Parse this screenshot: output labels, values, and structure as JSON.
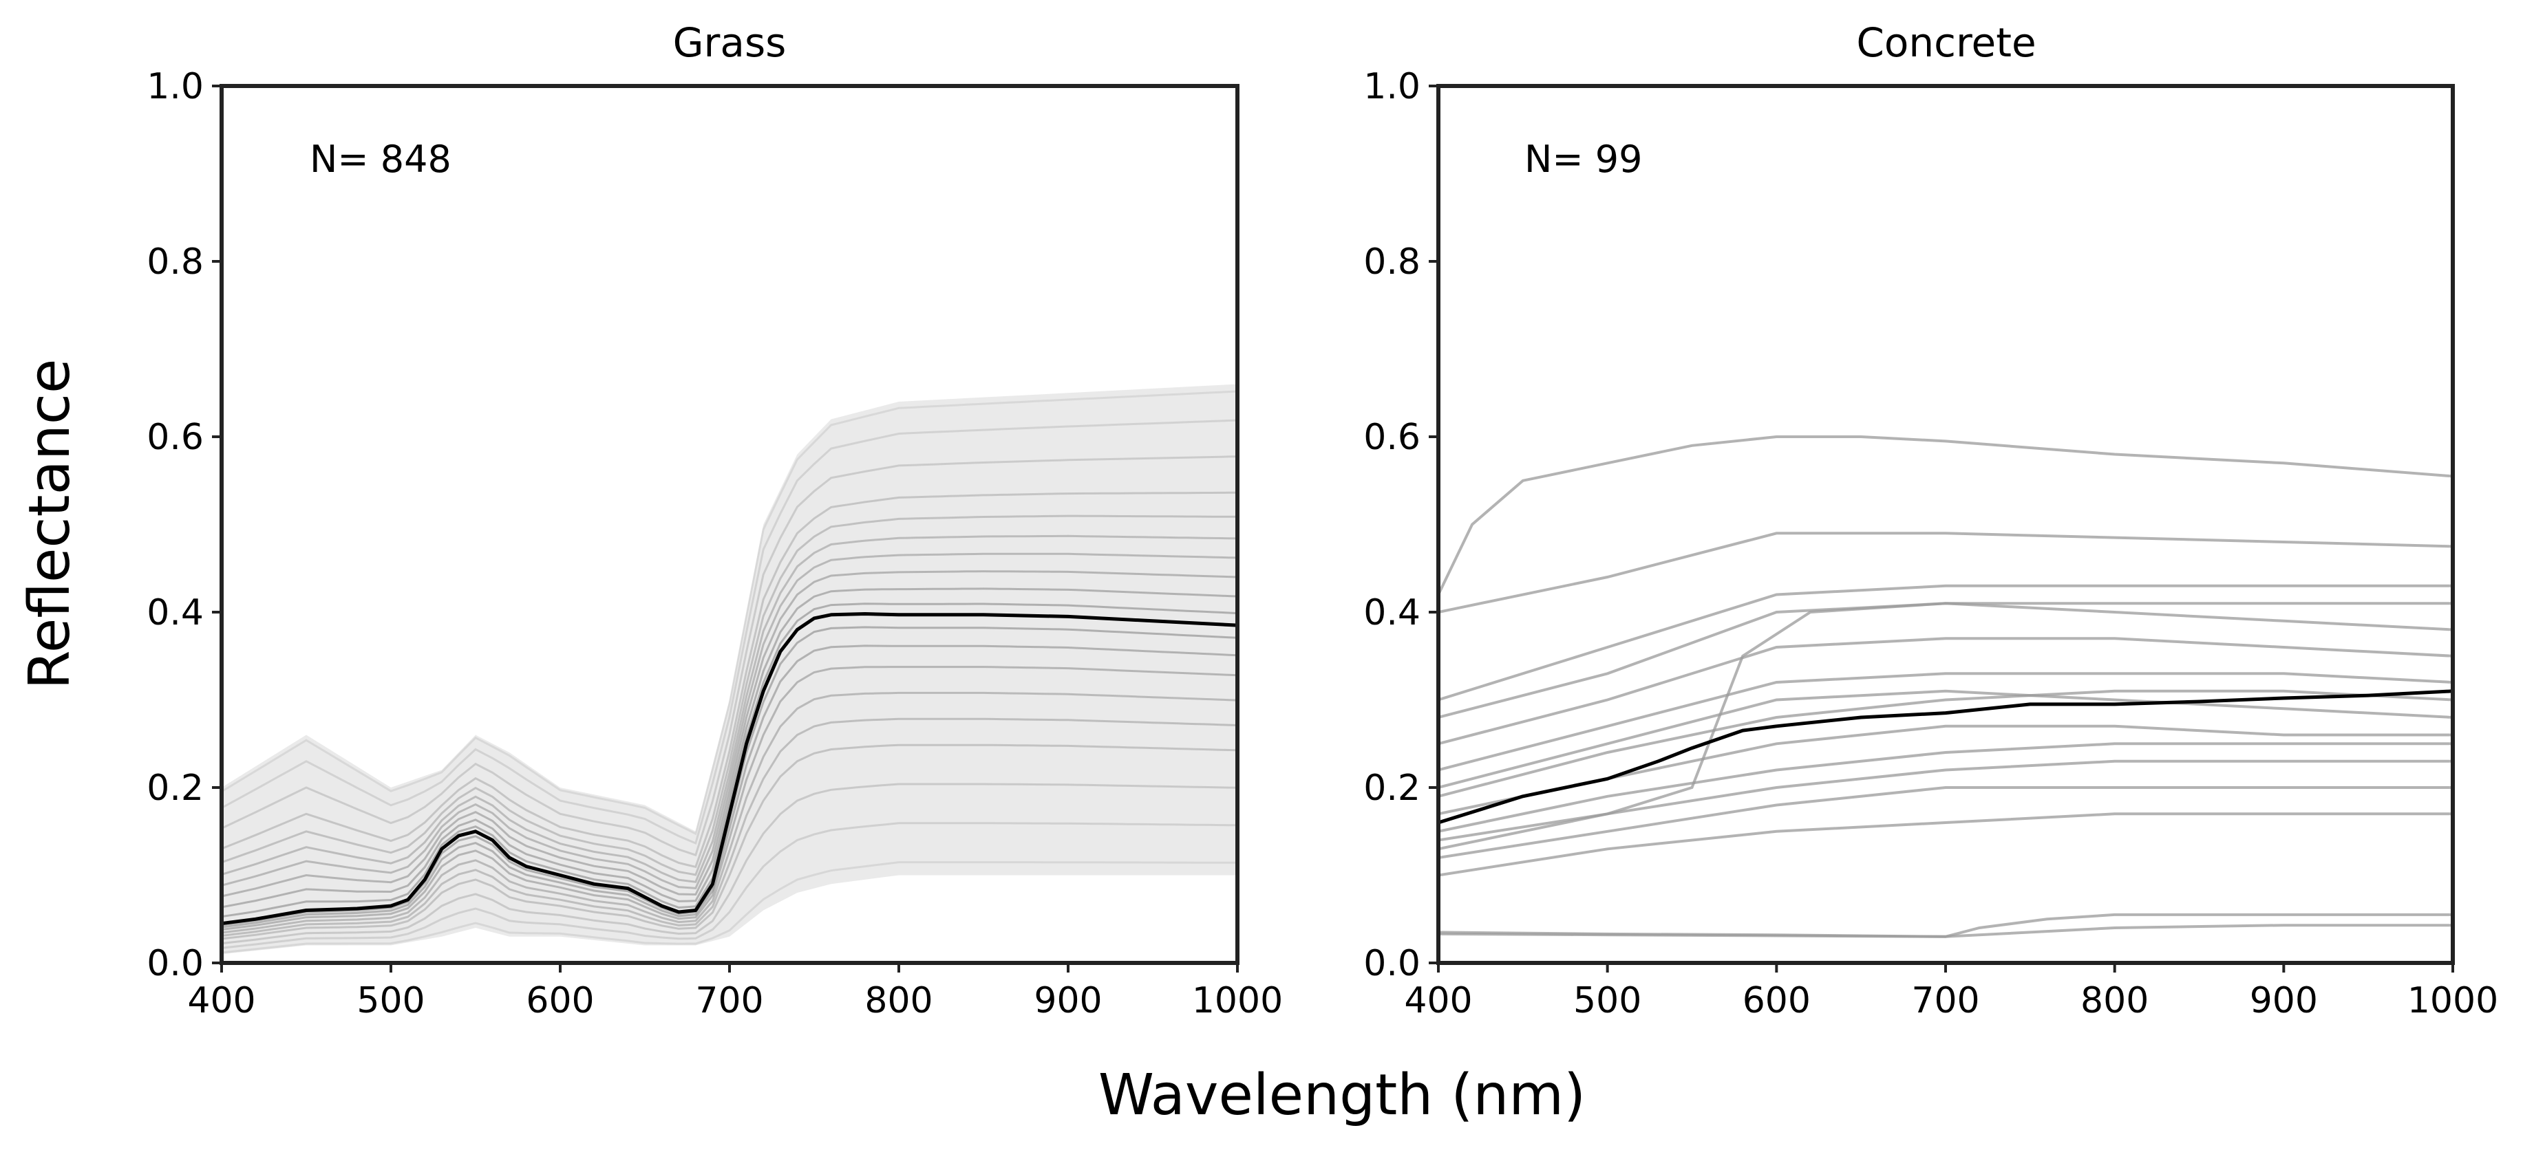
{
  "figure": {
    "xlabel": "Wavelength (nm)",
    "ylabel": "Reflectance"
  },
  "chart_data": [
    {
      "type": "line",
      "title": "Grass",
      "annotation": "N= 848",
      "n_spectra": 848,
      "xlabel": "Wavelength (nm)",
      "ylabel": "Reflectance",
      "xlim": [
        400,
        1000
      ],
      "ylim": [
        0.0,
        1.0
      ],
      "xticks": [
        "400",
        "500",
        "600",
        "700",
        "800",
        "900",
        "1000"
      ],
      "yticks": [
        "0.0",
        "0.2",
        "0.4",
        "0.6",
        "0.8",
        "1.0"
      ],
      "mean_series": {
        "name": "mean",
        "x": [
          400,
          420,
          450,
          480,
          500,
          510,
          520,
          530,
          540,
          550,
          560,
          570,
          580,
          600,
          620,
          640,
          660,
          670,
          680,
          690,
          700,
          710,
          720,
          730,
          740,
          750,
          760,
          780,
          800,
          850,
          900,
          950,
          1000
        ],
        "y": [
          0.045,
          0.05,
          0.06,
          0.062,
          0.065,
          0.072,
          0.095,
          0.13,
          0.145,
          0.15,
          0.14,
          0.12,
          0.11,
          0.1,
          0.09,
          0.085,
          0.065,
          0.058,
          0.06,
          0.09,
          0.17,
          0.25,
          0.31,
          0.355,
          0.38,
          0.393,
          0.397,
          0.398,
          0.397,
          0.397,
          0.395,
          0.39,
          0.385
        ]
      },
      "envelope": {
        "name": "individual spectra range",
        "x": [
          400,
          450,
          500,
          530,
          550,
          570,
          600,
          650,
          680,
          700,
          720,
          740,
          760,
          800,
          900,
          1000
        ],
        "low": [
          0.01,
          0.02,
          0.02,
          0.03,
          0.04,
          0.03,
          0.03,
          0.02,
          0.02,
          0.03,
          0.06,
          0.08,
          0.09,
          0.1,
          0.1,
          0.1
        ],
        "high": [
          0.2,
          0.26,
          0.2,
          0.22,
          0.26,
          0.24,
          0.2,
          0.18,
          0.15,
          0.3,
          0.5,
          0.58,
          0.62,
          0.64,
          0.65,
          0.66
        ]
      }
    },
    {
      "type": "line",
      "title": "Concrete",
      "annotation": "N= 99",
      "n_spectra": 99,
      "xlabel": "Wavelength (nm)",
      "ylabel": "Reflectance",
      "xlim": [
        400,
        1000
      ],
      "ylim": [
        0.0,
        1.0
      ],
      "xticks": [
        "400",
        "500",
        "600",
        "700",
        "800",
        "900",
        "1000"
      ],
      "yticks": [
        "0.0",
        "0.2",
        "0.4",
        "0.6",
        "0.8",
        "1.0"
      ],
      "mean_series": {
        "name": "mean",
        "x": [
          400,
          450,
          500,
          530,
          550,
          580,
          600,
          650,
          700,
          750,
          800,
          850,
          900,
          950,
          1000
        ],
        "y": [
          0.16,
          0.19,
          0.21,
          0.23,
          0.245,
          0.265,
          0.27,
          0.28,
          0.285,
          0.295,
          0.295,
          0.298,
          0.302,
          0.305,
          0.31
        ]
      },
      "sample_series": [
        {
          "name": "spectrum-1",
          "x": [
            400,
            420,
            450,
            500,
            550,
            600,
            650,
            700,
            800,
            900,
            1000
          ],
          "y": [
            0.42,
            0.5,
            0.55,
            0.57,
            0.59,
            0.6,
            0.6,
            0.595,
            0.58,
            0.57,
            0.555
          ]
        },
        {
          "name": "spectrum-2",
          "x": [
            400,
            500,
            600,
            700,
            800,
            900,
            1000
          ],
          "y": [
            0.4,
            0.44,
            0.49,
            0.49,
            0.485,
            0.48,
            0.475
          ]
        },
        {
          "name": "spectrum-3",
          "x": [
            400,
            500,
            600,
            700,
            800,
            900,
            1000
          ],
          "y": [
            0.3,
            0.36,
            0.42,
            0.43,
            0.43,
            0.43,
            0.43
          ]
        },
        {
          "name": "spectrum-4",
          "x": [
            400,
            500,
            600,
            700,
            800,
            900,
            1000
          ],
          "y": [
            0.28,
            0.33,
            0.4,
            0.41,
            0.41,
            0.41,
            0.41
          ]
        },
        {
          "name": "spectrum-5",
          "x": [
            400,
            500,
            550,
            580,
            620,
            700,
            800,
            900,
            1000
          ],
          "y": [
            0.14,
            0.17,
            0.2,
            0.35,
            0.4,
            0.41,
            0.4,
            0.39,
            0.38
          ]
        },
        {
          "name": "spectrum-6",
          "x": [
            400,
            500,
            600,
            700,
            800,
            900,
            1000
          ],
          "y": [
            0.25,
            0.3,
            0.36,
            0.37,
            0.37,
            0.36,
            0.35
          ]
        },
        {
          "name": "spectrum-7",
          "x": [
            400,
            500,
            600,
            700,
            800,
            900,
            1000
          ],
          "y": [
            0.22,
            0.27,
            0.32,
            0.33,
            0.33,
            0.33,
            0.32
          ]
        },
        {
          "name": "spectrum-8",
          "x": [
            400,
            500,
            600,
            700,
            800,
            900,
            1000
          ],
          "y": [
            0.19,
            0.24,
            0.28,
            0.3,
            0.31,
            0.31,
            0.3
          ]
        },
        {
          "name": "spectrum-9",
          "x": [
            400,
            500,
            600,
            700,
            800,
            900,
            1000
          ],
          "y": [
            0.15,
            0.19,
            0.22,
            0.24,
            0.25,
            0.25,
            0.25
          ]
        },
        {
          "name": "spectrum-10",
          "x": [
            400,
            500,
            600,
            700,
            800,
            900,
            1000
          ],
          "y": [
            0.13,
            0.17,
            0.2,
            0.22,
            0.23,
            0.23,
            0.23
          ]
        },
        {
          "name": "spectrum-11",
          "x": [
            400,
            500,
            600,
            700,
            800,
            900,
            1000
          ],
          "y": [
            0.12,
            0.15,
            0.18,
            0.2,
            0.2,
            0.2,
            0.2
          ]
        },
        {
          "name": "spectrum-12",
          "x": [
            400,
            500,
            600,
            700,
            800,
            900,
            1000
          ],
          "y": [
            0.1,
            0.13,
            0.15,
            0.16,
            0.17,
            0.17,
            0.17
          ]
        },
        {
          "name": "spectrum-13",
          "x": [
            400,
            500,
            600,
            700,
            800,
            900,
            1000
          ],
          "y": [
            0.17,
            0.21,
            0.25,
            0.27,
            0.27,
            0.26,
            0.26
          ]
        },
        {
          "name": "spectrum-14",
          "x": [
            400,
            500,
            600,
            700,
            800,
            900,
            1000
          ],
          "y": [
            0.2,
            0.25,
            0.3,
            0.31,
            0.3,
            0.29,
            0.28
          ]
        },
        {
          "name": "spectrum-15",
          "x": [
            400,
            500,
            600,
            700,
            720,
            760,
            800,
            900,
            1000
          ],
          "y": [
            0.035,
            0.033,
            0.032,
            0.03,
            0.04,
            0.05,
            0.055,
            0.055,
            0.055
          ]
        },
        {
          "name": "spectrum-16",
          "x": [
            400,
            500,
            600,
            700,
            800,
            900,
            1000
          ],
          "y": [
            0.033,
            0.032,
            0.031,
            0.03,
            0.04,
            0.043,
            0.043
          ]
        }
      ]
    }
  ]
}
